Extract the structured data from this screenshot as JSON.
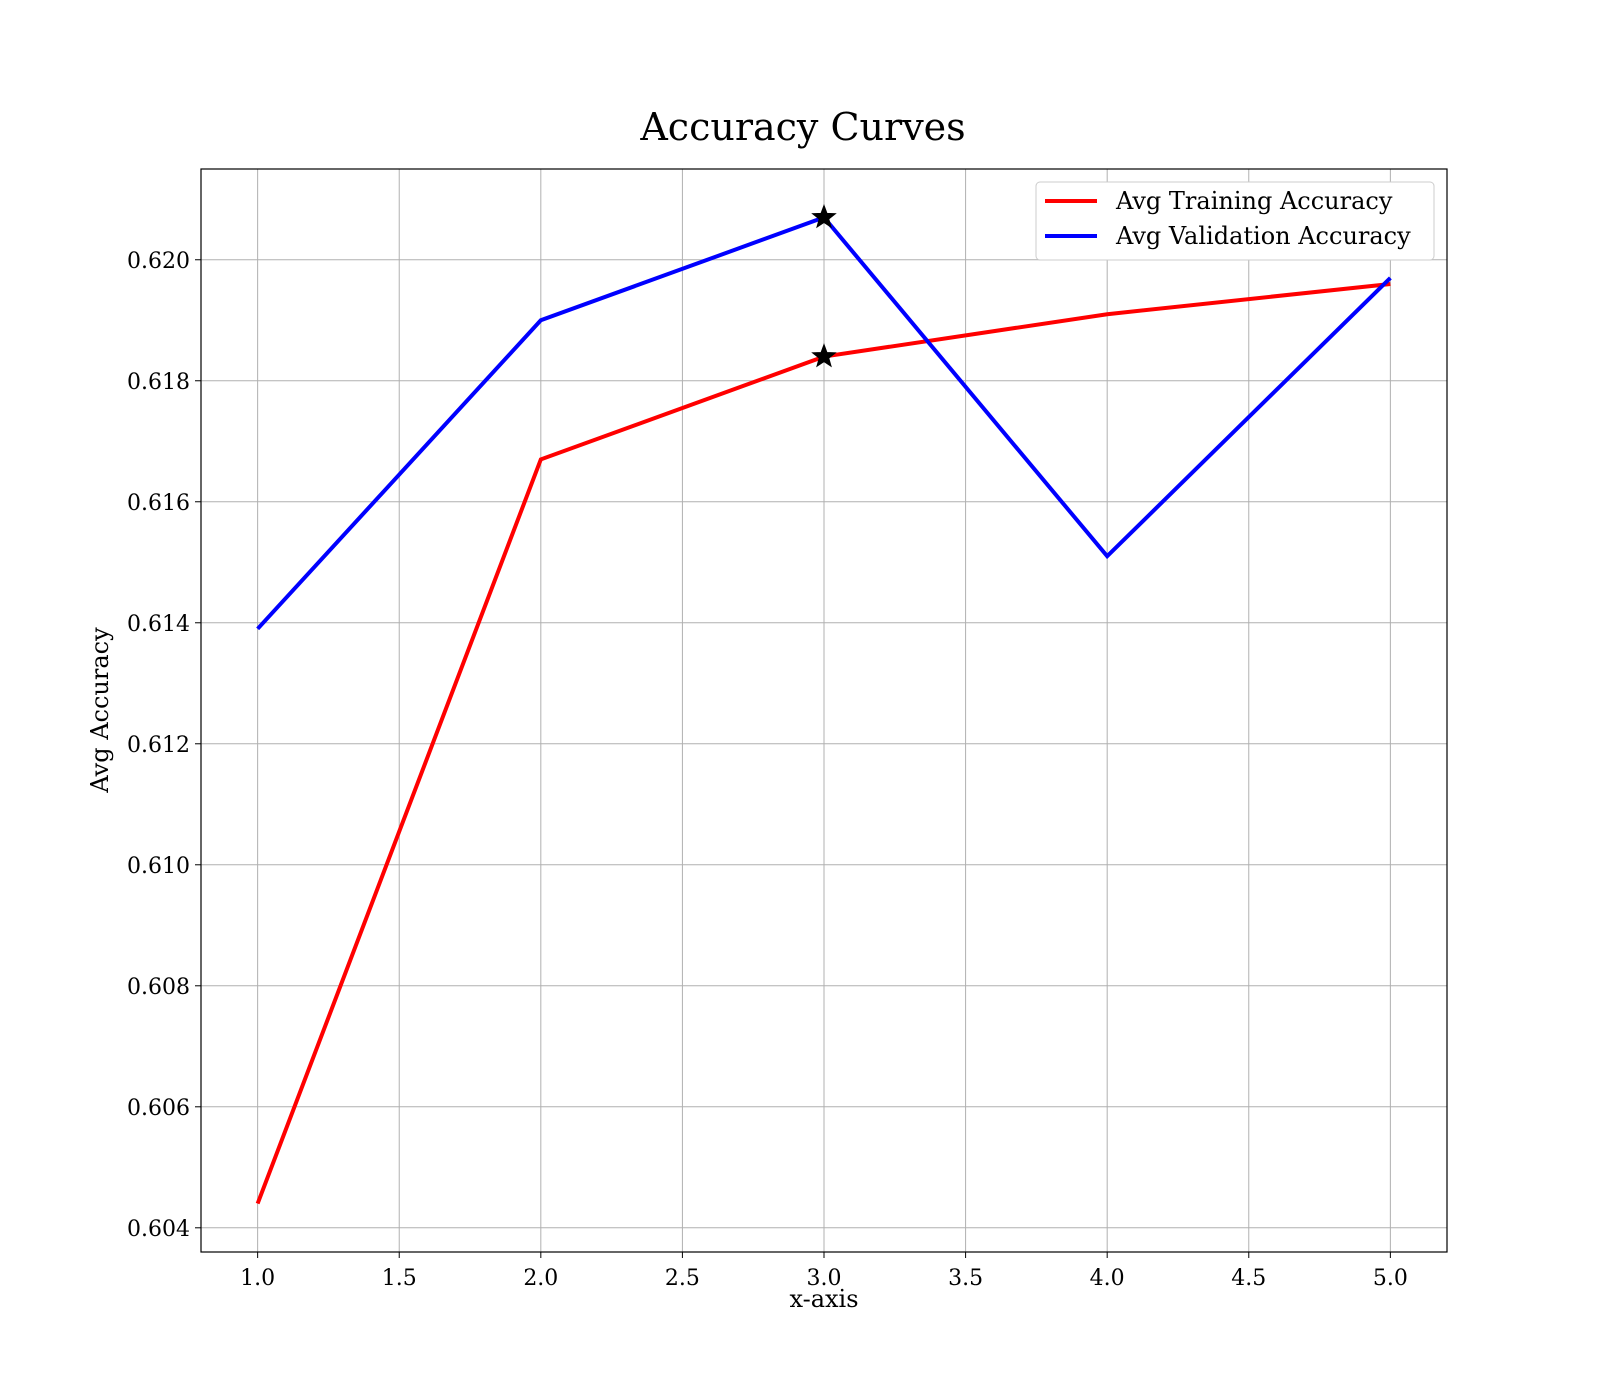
{
  "chart_data": {
    "type": "line",
    "title": "Accuracy Curves",
    "xlabel": "x-axis",
    "ylabel": "Avg Accuracy",
    "x": [
      1,
      2,
      3,
      4,
      5
    ],
    "xlim": [
      0.8,
      5.2
    ],
    "ylim": [
      0.6036,
      0.6215
    ],
    "xticks": [
      1.0,
      1.5,
      2.0,
      2.5,
      3.0,
      3.5,
      4.0,
      4.5,
      5.0
    ],
    "xtick_labels": [
      "1.0",
      "1.5",
      "2.0",
      "2.5",
      "3.0",
      "3.5",
      "4.0",
      "4.5",
      "5.0"
    ],
    "yticks": [
      0.604,
      0.606,
      0.608,
      0.61,
      0.612,
      0.614,
      0.616,
      0.618,
      0.62
    ],
    "ytick_labels": [
      "0.604",
      "0.606",
      "0.608",
      "0.610",
      "0.612",
      "0.614",
      "0.616",
      "0.618",
      "0.620"
    ],
    "grid": true,
    "legend_position": "top-right",
    "series": [
      {
        "name": "Avg Training Accuracy",
        "color": "#ff0000",
        "values": [
          0.6044,
          0.6167,
          0.6184,
          0.6191,
          0.6196
        ],
        "best_marker": {
          "x": 3,
          "y": 0.6184,
          "marker": "star"
        }
      },
      {
        "name": "Avg Validation Accuracy",
        "color": "#0000ff",
        "values": [
          0.6139,
          0.619,
          0.6207,
          0.6151,
          0.6197
        ],
        "best_marker": {
          "x": 3,
          "y": 0.6207,
          "marker": "star"
        }
      }
    ]
  }
}
